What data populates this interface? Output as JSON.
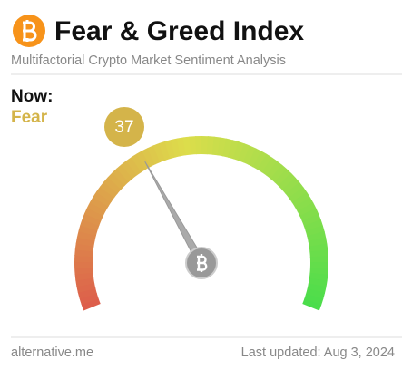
{
  "chart_data": {
    "type": "gauge",
    "title": "Fear & Greed Index",
    "subtitle": "Multifactorial Crypto Market Sentiment Analysis",
    "now_label": "Now:",
    "classification": "Fear",
    "value": 37,
    "ylim": [
      0,
      100
    ],
    "source": "alternative.me",
    "updated": "Last updated: Aug 3, 2024"
  }
}
